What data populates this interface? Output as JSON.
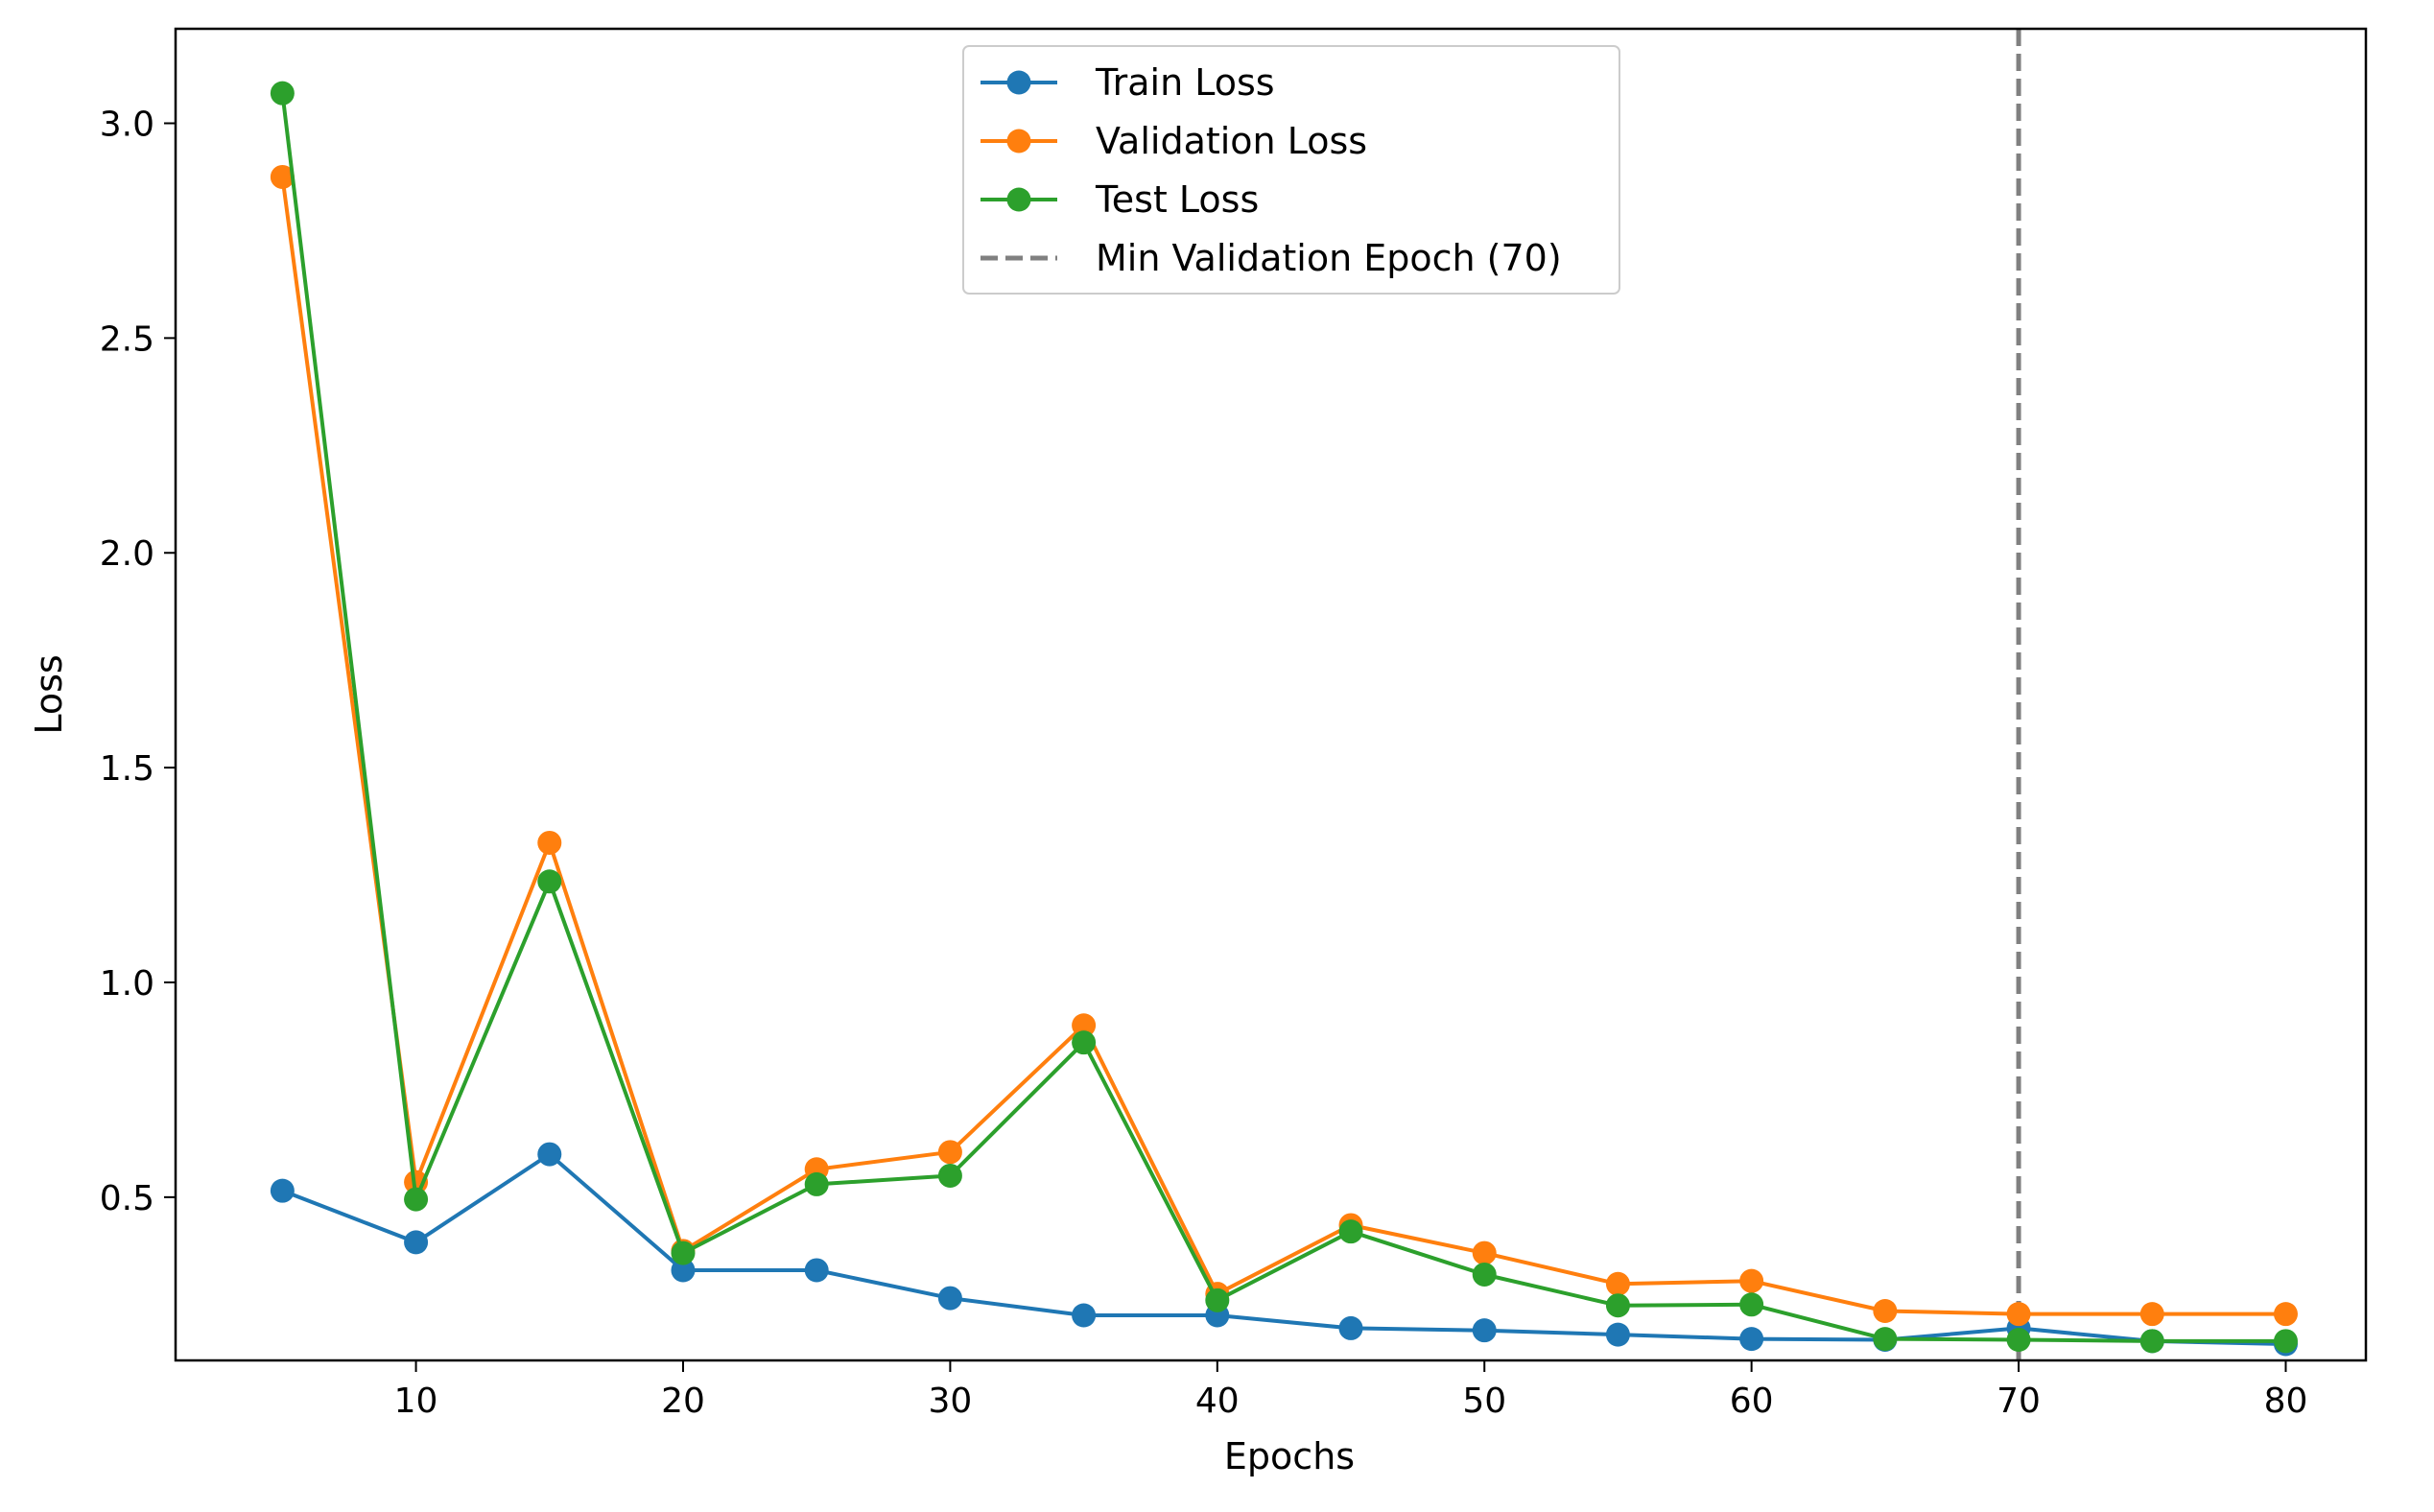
{
  "chart_data": {
    "type": "line",
    "title": "",
    "xlabel": "Epochs",
    "ylabel": "Loss",
    "x": [
      5,
      10,
      15,
      20,
      25,
      30,
      35,
      40,
      45,
      50,
      55,
      60,
      65,
      70,
      75,
      80
    ],
    "xlim": [
      1,
      83
    ],
    "ylim": [
      0.12,
      3.22
    ],
    "xticks": [
      10,
      20,
      30,
      40,
      50,
      60,
      70,
      80
    ],
    "yticks": [
      0.5,
      1.0,
      1.5,
      2.0,
      2.5,
      3.0
    ],
    "xtick_labels": [
      "10",
      "20",
      "30",
      "40",
      "50",
      "60",
      "70",
      "80"
    ],
    "ytick_labels": [
      "0.5",
      "1.0",
      "1.5",
      "2.0",
      "2.5",
      "3.0"
    ],
    "grid": false,
    "legend_position": "top-center",
    "series": [
      {
        "name": "Train Loss",
        "color": "#1f77b4",
        "marker": "circle",
        "values": [
          0.515,
          0.395,
          0.6,
          0.33,
          0.33,
          0.265,
          0.225,
          0.225,
          0.195,
          0.19,
          0.18,
          0.17,
          0.168,
          0.195,
          0.165,
          0.158
        ]
      },
      {
        "name": "Validation Loss",
        "color": "#ff7f0e",
        "marker": "circle",
        "values": [
          2.875,
          0.535,
          1.325,
          0.375,
          0.565,
          0.605,
          0.9,
          0.275,
          0.435,
          0.37,
          0.298,
          0.305,
          0.235,
          0.228,
          0.228,
          0.228
        ]
      },
      {
        "name": "Test Loss",
        "color": "#2ca02c",
        "marker": "circle",
        "values": [
          3.07,
          0.495,
          1.235,
          0.37,
          0.53,
          0.55,
          0.86,
          0.26,
          0.42,
          0.32,
          0.248,
          0.25,
          0.17,
          0.168,
          0.165,
          0.165
        ]
      }
    ],
    "reference_lines": [
      {
        "name": "Min Validation Epoch (70)",
        "orientation": "vertical",
        "x": 70,
        "color": "#808080",
        "style": "dashed"
      }
    ]
  }
}
